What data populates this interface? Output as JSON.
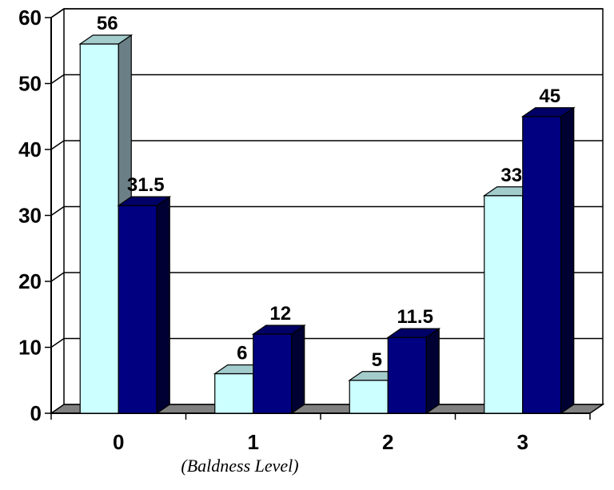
{
  "chart_data": {
    "type": "bar",
    "categories": [
      "0",
      "1",
      "2",
      "3"
    ],
    "series": [
      {
        "values": [
          56,
          6,
          5,
          33
        ],
        "color": "#ccffff",
        "side_color": "#6b7f86",
        "top_color": "#a3cccc"
      },
      {
        "values": [
          31.5,
          12,
          11.5,
          45
        ],
        "color": "#000080",
        "side_color": "#000033",
        "top_color": "#000066"
      }
    ],
    "value_labels": [
      [
        "56",
        "6",
        "5",
        "33"
      ],
      [
        "31.5",
        "12",
        "11.5",
        "45"
      ]
    ],
    "xlabel": "(Baldness Level)",
    "ylabel": "",
    "ylim": [
      0,
      60
    ],
    "yticks": [
      "0",
      "10",
      "20",
      "30",
      "40",
      "50",
      "60"
    ],
    "grid": true,
    "style": "3d-clustered-column"
  }
}
